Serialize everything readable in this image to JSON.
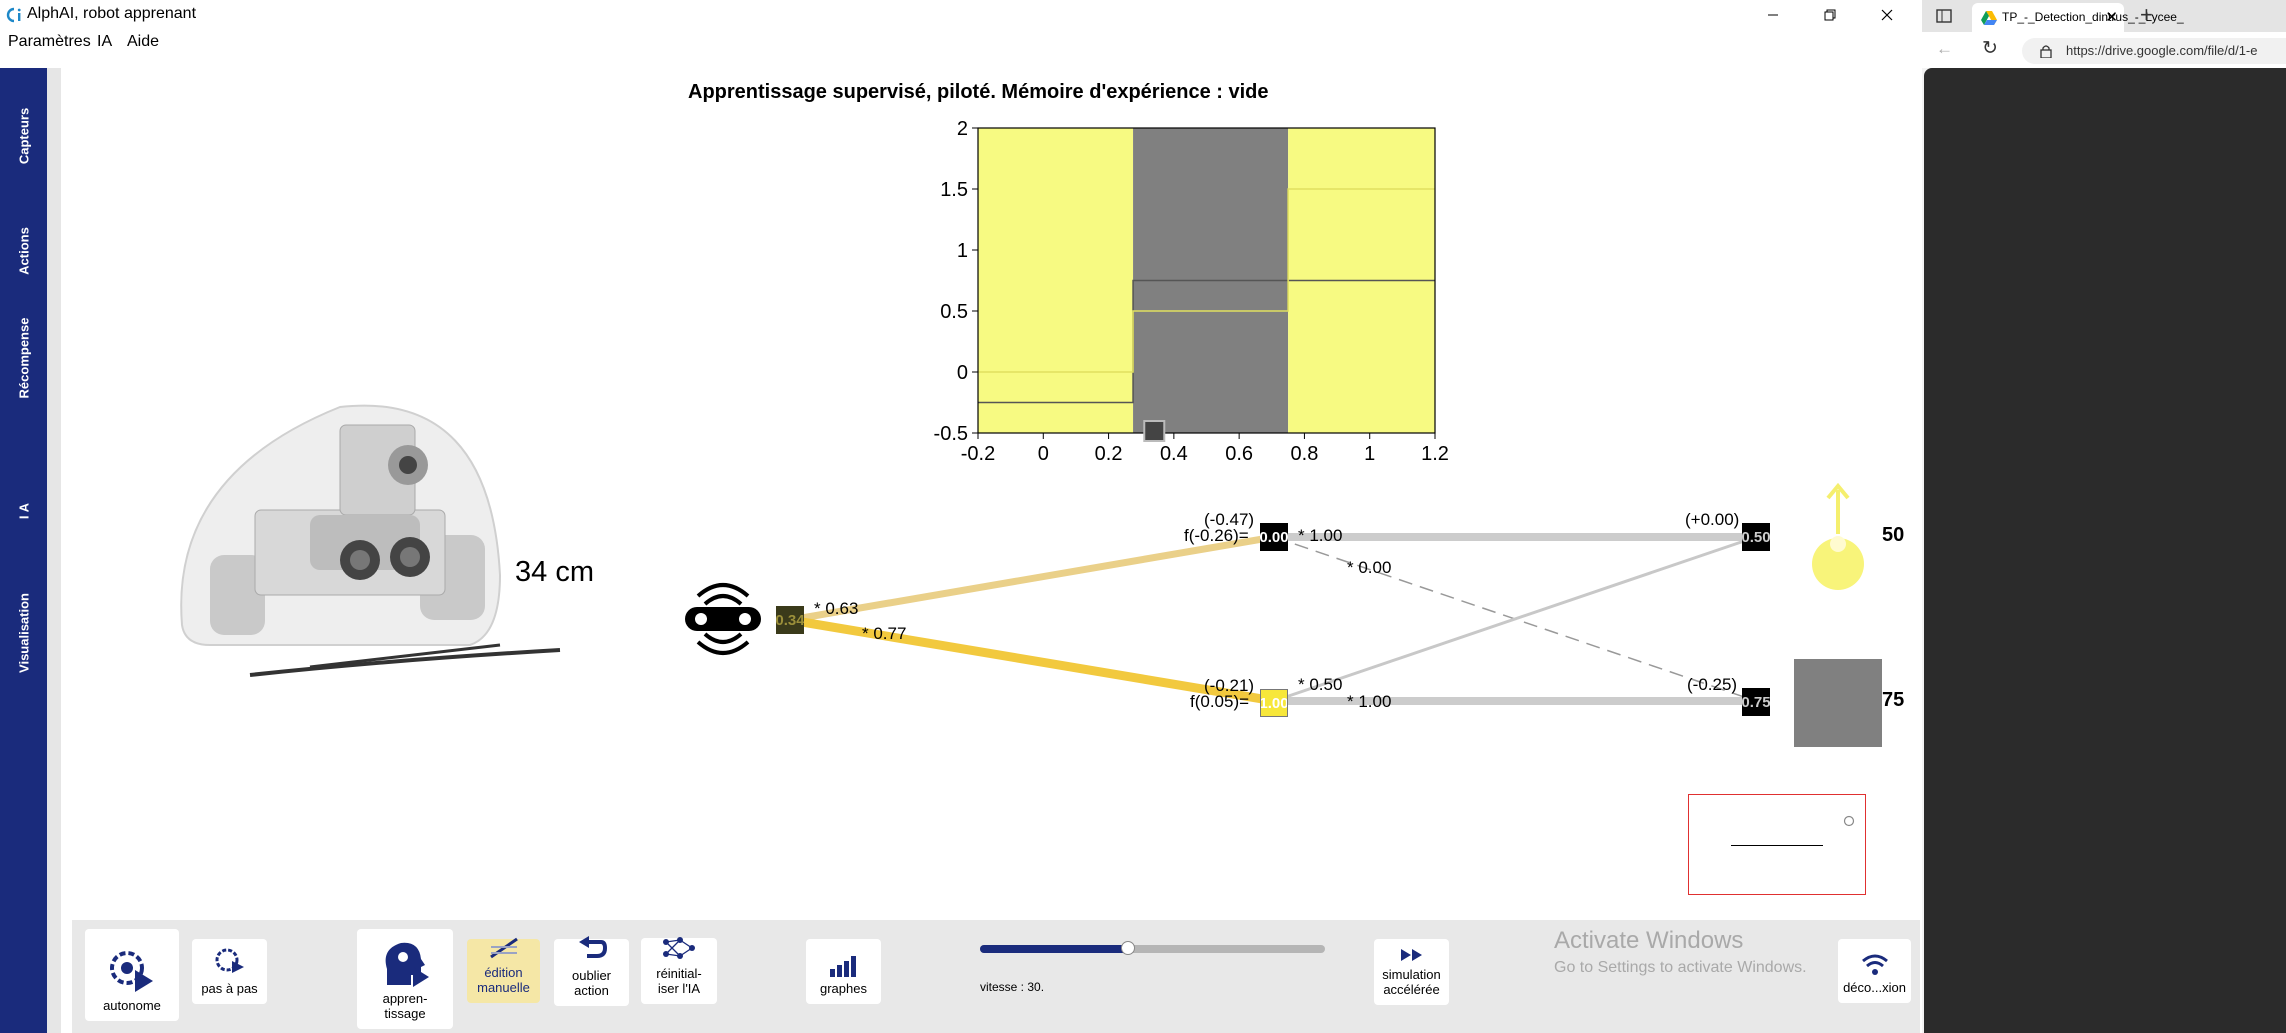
{
  "window": {
    "title": "AlphAI, robot apprenant"
  },
  "menu": [
    "Paramètres",
    "IA",
    "Aide"
  ],
  "sidebar": [
    "Capteurs",
    "Actions",
    "Récompense",
    "I A",
    "Visualisation"
  ],
  "heading": "Apprentissage supervisé, piloté. Mémoire d'expérience : vide",
  "distance": "34 cm",
  "chart_data": {
    "type": "line",
    "xlim": [
      -0.2,
      1.2
    ],
    "ylim": [
      -0.5,
      2
    ],
    "xticks": [
      "-0.2",
      "0",
      "0.2",
      "0.4",
      "0.6",
      "0.8",
      "1",
      "1.2"
    ],
    "yticks": [
      "2",
      "1.5",
      "1",
      "0.5",
      "0",
      "-0.5"
    ],
    "regions": [
      {
        "from": -0.2,
        "to": 0.275,
        "color": "#f7fa82"
      },
      {
        "from": 0.275,
        "to": 0.75,
        "color": "#808080"
      },
      {
        "from": 0.75,
        "to": 1.2,
        "color": "#f7fa82"
      }
    ],
    "series": [
      {
        "color": "#555555",
        "points": [
          [
            -0.2,
            -0.25
          ],
          [
            0.275,
            -0.25
          ],
          [
            0.275,
            0.75
          ],
          [
            1.2,
            0.75
          ]
        ]
      },
      {
        "color": "#e0e060",
        "points": [
          [
            -0.2,
            0
          ],
          [
            0.275,
            0
          ],
          [
            0.275,
            0.5
          ],
          [
            0.75,
            0.5
          ],
          [
            0.75,
            1.5
          ],
          [
            1.2,
            1.5
          ]
        ]
      }
    ],
    "marker_x": 0.34,
    "grid": false
  },
  "network": {
    "input_value": "0.34",
    "w_in_top": "* 0.63",
    "w_in_bottom": "* 0.77",
    "hidden_top": {
      "bias": "(-0.47)",
      "f": "f(-0.26)=",
      "value": "0.00"
    },
    "hidden_bottom": {
      "bias": "(-0.21)",
      "f": "f(0.05)=",
      "value": "1.00"
    },
    "w_top_top": "* 1.00",
    "w_top_bottom": "* 0.00",
    "w_bottom_top": "* 0.50",
    "w_bottom_bottom": "* 1.00",
    "out_top": {
      "bias": "(+0.00)",
      "value": "0.50"
    },
    "out_bottom": {
      "bias": "(-0.25)",
      "value": "0.75"
    },
    "out_top_score": "50",
    "out_bottom_score": "75"
  },
  "toolbar": {
    "autonome": "autonome",
    "pas_a_pas": "pas à pas",
    "apprentissage": "appren-\ntissage",
    "edition": "édition\nmanuelle",
    "oublier": "oublier\naction",
    "reinit": "réinitial-\niser l'IA",
    "graphes": "graphes",
    "vitesse": "vitesse : 30.",
    "simulation": "simulation\naccélérée",
    "deco": "déco...xion",
    "speed_value": 0.43
  },
  "activate": {
    "line1": "Activate Windows",
    "line2": "Go to Settings to activate Windows."
  },
  "browser": {
    "tab_title": "TP_-_Detection_dintrus_-_Lycee_",
    "url": "https://drive.google.com/file/d/1-e"
  }
}
